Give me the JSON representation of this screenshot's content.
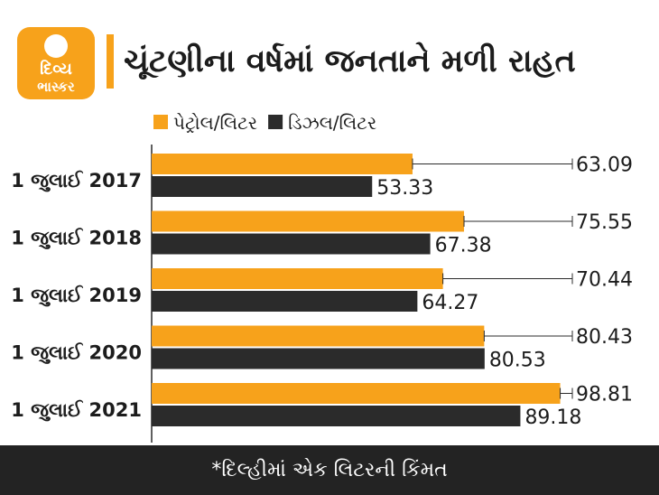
{
  "brand": {
    "line1": "દિવ્ય",
    "line2": "ભાસ્કર"
  },
  "title": "ચૂંટણીના વર્ષમાં જનતાને મળી રાહત",
  "footer_note": "*દિલ્હીમાં એક લિટરની કિંમત",
  "colors": {
    "petrol": "#f7a21b",
    "diesel": "#2b2b2b",
    "accent": "#f7a21b",
    "footer_bg": "#232323"
  },
  "chart_data": {
    "type": "bar",
    "orientation": "horizontal",
    "categories": [
      "1 જુલાઈ 2017",
      "1 જુલાઈ 2018",
      "1 જુલાઈ 2019",
      "1 જુલાઈ 2020",
      "1 જુલાઈ 2021"
    ],
    "series": [
      {
        "name": "પેટ્રોલ/લિટર",
        "values": [
          63.09,
          75.55,
          70.44,
          80.43,
          98.81
        ]
      },
      {
        "name": "ડિઝલ/લિટર",
        "values": [
          53.33,
          67.38,
          64.27,
          80.53,
          89.18
        ]
      }
    ],
    "xlim": [
      0,
      100
    ],
    "legend_position": "top-left",
    "grid": false
  }
}
